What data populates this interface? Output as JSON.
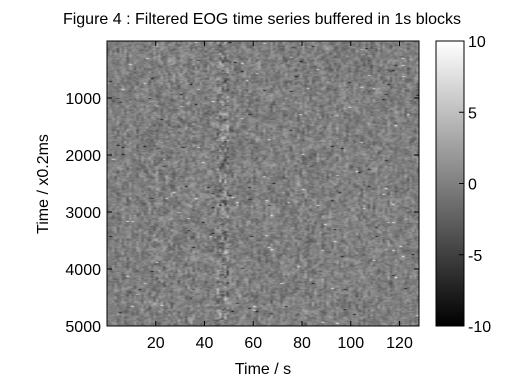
{
  "figure": {
    "title": "Figure 4 : Filtered EOG time series buffered in 1s blocks"
  },
  "chart_data": {
    "type": "heatmap",
    "title": "Figure 4 : Filtered EOG time series buffered in 1s blocks",
    "xlabel": "Time / s",
    "ylabel": "Time / x0.2ms",
    "xlim": [
      0,
      128
    ],
    "ylim": [
      0,
      5000
    ],
    "y_reversed": true,
    "x_ticks": [
      20,
      40,
      60,
      80,
      100,
      120
    ],
    "y_ticks": [
      1000,
      2000,
      3000,
      4000,
      5000
    ],
    "colormap": "gray",
    "clim": [
      -10,
      10
    ],
    "colorbar_ticks": [
      10,
      5,
      0,
      -5,
      -10
    ],
    "colors": {
      "low": "#000000",
      "high": "#ffffff",
      "axis": "#000000"
    }
  }
}
